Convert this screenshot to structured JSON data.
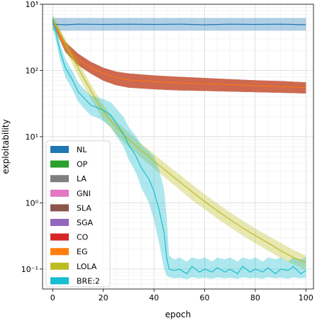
{
  "chart_data": {
    "type": "line",
    "xlabel": "epoch",
    "ylabel": "exploitability",
    "x_scale": "linear",
    "y_scale": "log",
    "xlim": [
      -4,
      103
    ],
    "ylim": [
      0.05,
      1000
    ],
    "x_ticks": [
      0,
      20,
      40,
      60,
      80,
      100
    ],
    "x_tick_labels": [
      "0",
      "20",
      "40",
      "60",
      "80",
      "100"
    ],
    "y_ticks": [
      0.1,
      1,
      10,
      100,
      1000
    ],
    "y_tick_labels": [
      "10⁻¹",
      "10⁰",
      "10¹",
      "10²",
      "10³"
    ],
    "grid": "major and minor",
    "legend_position": "lower-left",
    "series": [
      {
        "name": "NL",
        "color": "#1f77b4",
        "x": [
          0,
          5,
          10,
          20,
          30,
          40,
          50,
          60,
          70,
          80,
          90,
          100
        ],
        "y": [
          500,
          490,
          500,
          495,
          500,
          495,
          500,
          490,
          500,
          495,
          500,
          490
        ],
        "band_low": [
          400,
          400,
          400,
          400,
          400,
          400,
          400,
          400,
          400,
          400,
          400,
          400
        ],
        "band_high": [
          620,
          620,
          620,
          620,
          620,
          620,
          620,
          620,
          620,
          620,
          620,
          620
        ]
      },
      {
        "name": "OP",
        "color": "#2ca02c",
        "x": [
          0,
          5,
          10,
          15,
          20,
          25,
          30,
          40,
          50,
          60,
          70,
          80,
          90,
          100
        ],
        "y": [
          580,
          230,
          150,
          110,
          90,
          78,
          72,
          68,
          65,
          63,
          61,
          59,
          57,
          55
        ],
        "band_low": [
          500,
          190,
          120,
          90,
          70,
          60,
          55,
          52,
          50,
          49,
          48,
          47,
          46,
          45
        ],
        "band_high": [
          620,
          270,
          180,
          135,
          110,
          96,
          90,
          84,
          80,
          77,
          74,
          71,
          69,
          66
        ]
      },
      {
        "name": "LA",
        "color": "#7f7f7f",
        "x": [
          0,
          5,
          10,
          15,
          20,
          25,
          30,
          40,
          50,
          60,
          70,
          80,
          90,
          100
        ],
        "y": [
          580,
          230,
          150,
          110,
          90,
          78,
          72,
          68,
          65,
          63,
          61,
          59,
          57,
          55
        ],
        "band_low": [
          500,
          190,
          120,
          90,
          70,
          60,
          55,
          52,
          50,
          49,
          48,
          47,
          46,
          45
        ],
        "band_high": [
          620,
          270,
          180,
          135,
          110,
          96,
          90,
          84,
          80,
          77,
          74,
          71,
          69,
          66
        ]
      },
      {
        "name": "GNI",
        "color": "#e377c2",
        "x": [
          0,
          5,
          10,
          15,
          20,
          25,
          30,
          40,
          50,
          60,
          70,
          80,
          90,
          100
        ],
        "y": [
          580,
          230,
          150,
          110,
          90,
          78,
          72,
          68,
          65,
          63,
          61,
          59,
          57,
          55
        ],
        "band_low": [
          500,
          190,
          120,
          90,
          70,
          60,
          55,
          52,
          50,
          49,
          48,
          47,
          46,
          45
        ],
        "band_high": [
          620,
          270,
          180,
          135,
          110,
          96,
          90,
          84,
          80,
          77,
          74,
          71,
          69,
          66
        ]
      },
      {
        "name": "SLA",
        "color": "#8c564b",
        "x": [
          0,
          5,
          10,
          15,
          20,
          25,
          30,
          40,
          50,
          60,
          70,
          80,
          90,
          100
        ],
        "y": [
          580,
          230,
          150,
          110,
          90,
          78,
          72,
          68,
          65,
          63,
          61,
          59,
          57,
          55
        ],
        "band_low": [
          500,
          190,
          120,
          90,
          70,
          60,
          55,
          52,
          50,
          49,
          48,
          47,
          46,
          45
        ],
        "band_high": [
          620,
          270,
          180,
          135,
          110,
          96,
          90,
          84,
          80,
          77,
          74,
          71,
          69,
          66
        ]
      },
      {
        "name": "SGA",
        "color": "#9467bd",
        "x": [
          0,
          5,
          10,
          15,
          20,
          25,
          30,
          40,
          50,
          60,
          70,
          80,
          90,
          100
        ],
        "y": [
          580,
          230,
          150,
          110,
          90,
          78,
          72,
          68,
          65,
          63,
          61,
          59,
          57,
          55
        ],
        "band_low": [
          500,
          190,
          120,
          90,
          70,
          60,
          55,
          52,
          50,
          49,
          48,
          47,
          46,
          45
        ],
        "band_high": [
          620,
          270,
          180,
          135,
          110,
          96,
          90,
          84,
          80,
          77,
          74,
          71,
          69,
          66
        ]
      },
      {
        "name": "CO",
        "color": "#d62728",
        "x": [
          0,
          5,
          10,
          15,
          20,
          25,
          30,
          40,
          50,
          60,
          70,
          80,
          90,
          100
        ],
        "y": [
          580,
          230,
          150,
          110,
          90,
          78,
          72,
          68,
          65,
          63,
          61,
          59,
          57,
          55
        ],
        "band_low": [
          500,
          190,
          120,
          90,
          70,
          60,
          55,
          52,
          50,
          49,
          48,
          47,
          46,
          45
        ],
        "band_high": [
          620,
          270,
          180,
          135,
          110,
          96,
          90,
          84,
          80,
          77,
          74,
          71,
          69,
          66
        ]
      },
      {
        "name": "EG",
        "color": "#ff7f0e",
        "x": [
          0,
          5,
          10,
          15,
          20,
          25,
          30,
          40,
          50,
          60,
          70,
          80,
          90,
          100
        ],
        "y": [
          580,
          230,
          150,
          110,
          90,
          78,
          72,
          68,
          65,
          63,
          61,
          59,
          57,
          55
        ],
        "band_low": [
          500,
          190,
          120,
          90,
          70,
          60,
          55,
          52,
          50,
          49,
          48,
          47,
          46,
          45
        ],
        "band_high": [
          620,
          270,
          180,
          135,
          110,
          96,
          90,
          84,
          80,
          77,
          74,
          71,
          69,
          66
        ]
      },
      {
        "name": "LOLA",
        "color": "#bcbd22",
        "x": [
          0,
          5,
          10,
          15,
          20,
          25,
          30,
          35,
          40,
          45,
          50,
          55,
          60,
          65,
          70,
          75,
          80,
          85,
          90,
          95,
          100
        ],
        "y": [
          600,
          250,
          110,
          50,
          24,
          14,
          9,
          6.2,
          4.3,
          3.0,
          2.1,
          1.48,
          1.05,
          0.76,
          0.56,
          0.42,
          0.32,
          0.25,
          0.19,
          0.15,
          0.125
        ],
        "band_low": [
          480,
          200,
          85,
          38,
          18,
          10.8,
          7.0,
          4.8,
          3.3,
          2.3,
          1.6,
          1.1,
          0.8,
          0.58,
          0.43,
          0.32,
          0.245,
          0.19,
          0.148,
          0.118,
          0.098
        ],
        "band_high": [
          700,
          300,
          135,
          62,
          30,
          17.5,
          11.5,
          7.9,
          5.5,
          3.8,
          2.7,
          1.9,
          1.35,
          0.98,
          0.72,
          0.54,
          0.41,
          0.32,
          0.25,
          0.195,
          0.16
        ]
      },
      {
        "name": "BRE:2",
        "color": "#17becf",
        "x": [
          0,
          3,
          5,
          8,
          10,
          13,
          15,
          18,
          20,
          23,
          25,
          28,
          30,
          33,
          35,
          38,
          40,
          42,
          44,
          45,
          46,
          48,
          50,
          53,
          55,
          58,
          60,
          63,
          65,
          68,
          70,
          73,
          75,
          78,
          80,
          83,
          85,
          88,
          90,
          93,
          95,
          98,
          100
        ],
        "y": [
          600,
          190,
          110,
          70,
          48,
          36,
          30,
          27,
          25,
          21,
          16,
          11,
          7.5,
          5.0,
          3.4,
          2.3,
          1.5,
          0.8,
          0.35,
          0.15,
          0.1,
          0.095,
          0.1,
          0.085,
          0.11,
          0.09,
          0.1,
          0.09,
          0.105,
          0.09,
          0.1,
          0.085,
          0.11,
          0.09,
          0.1,
          0.09,
          0.105,
          0.085,
          0.1,
          0.095,
          0.11,
          0.085,
          0.095
        ],
        "band_low": [
          450,
          140,
          80,
          50,
          34,
          25,
          21,
          19,
          17,
          14,
          10.5,
          7.0,
          4.5,
          2.8,
          1.7,
          1.0,
          0.55,
          0.25,
          0.1,
          0.08,
          0.075,
          0.072,
          0.074,
          0.07,
          0.075,
          0.072,
          0.074,
          0.071,
          0.075,
          0.072,
          0.074,
          0.071,
          0.075,
          0.072,
          0.074,
          0.071,
          0.075,
          0.072,
          0.074,
          0.071,
          0.075,
          0.072,
          0.074
        ],
        "band_high": [
          700,
          250,
          150,
          95,
          66,
          50,
          42,
          39,
          37,
          33,
          27,
          20,
          14,
          10,
          7.5,
          6.0,
          5.0,
          3.2,
          1.6,
          0.6,
          0.16,
          0.14,
          0.15,
          0.13,
          0.15,
          0.14,
          0.15,
          0.13,
          0.15,
          0.14,
          0.15,
          0.13,
          0.15,
          0.14,
          0.15,
          0.13,
          0.15,
          0.14,
          0.15,
          0.13,
          0.15,
          0.14,
          0.15
        ]
      }
    ]
  }
}
